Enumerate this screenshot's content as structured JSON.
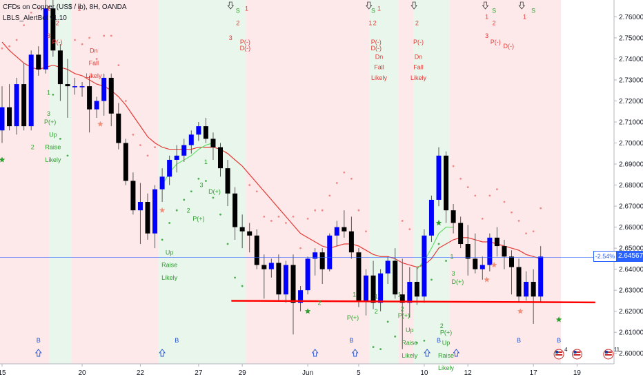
{
  "header": {
    "symbol_line": "CFDs on Copper (US$ / lb), 8H, OANDA",
    "indicator_line": "LBLS_AlertBot v1.10"
  },
  "price_tag": {
    "pct": "-2.54%",
    "value": "2.64567"
  },
  "colors": {
    "background": "#ffffff",
    "bull_candle": "#0000ff",
    "bear_candle": "#000000",
    "wick": "#555555",
    "uptrend_zone": "#e9f6ec",
    "downtrend_zone": "#fde9e9",
    "red_ma": "#e53935",
    "green_ma": "#66dd66",
    "support_line": "#ff0000",
    "current_price_line": "#2962ff",
    "sell_label": "#e53935",
    "buy_label": "#2e9e2e",
    "arrow_label": "#1e4fd6"
  },
  "chart_data": {
    "type": "candlestick",
    "title": "CFDs on Copper (US$ / lb), 8H, OANDA",
    "y_range": [
      2.595,
      2.768
    ],
    "y_ticks": [
      "2.76000",
      "2.75000",
      "2.74000",
      "2.73000",
      "2.72000",
      "2.71000",
      "2.70000",
      "2.69000",
      "2.68000",
      "2.67000",
      "2.66000",
      "2.65000",
      "2.64000",
      "2.63000",
      "2.62000",
      "2.61000",
      "2.60000"
    ],
    "x_ticks": [
      {
        "label": "15",
        "i": 0
      },
      {
        "label": "20",
        "i": 11
      },
      {
        "label": "22",
        "i": 19
      },
      {
        "label": "27",
        "i": 27
      },
      {
        "label": "29",
        "i": 33
      },
      {
        "label": "Jun",
        "i": 42
      },
      {
        "label": "5",
        "i": 49
      },
      {
        "label": "10",
        "i": 58
      },
      {
        "label": "12",
        "i": 64
      },
      {
        "label": "17",
        "i": 73
      },
      {
        "label": "19",
        "i": 79
      }
    ],
    "candles": [
      {
        "o": 2.706,
        "h": 2.727,
        "l": 2.7,
        "c": 2.717
      },
      {
        "o": 2.717,
        "h": 2.728,
        "l": 2.706,
        "c": 2.708
      },
      {
        "o": 2.708,
        "h": 2.731,
        "l": 2.704,
        "c": 2.728
      },
      {
        "o": 2.728,
        "h": 2.738,
        "l": 2.706,
        "c": 2.708
      },
      {
        "o": 2.708,
        "h": 2.744,
        "l": 2.706,
        "c": 2.742
      },
      {
        "o": 2.742,
        "h": 2.746,
        "l": 2.732,
        "c": 2.735
      },
      {
        "o": 2.735,
        "h": 2.772,
        "l": 2.733,
        "c": 2.764
      },
      {
        "o": 2.764,
        "h": 2.768,
        "l": 2.741,
        "c": 2.744
      },
      {
        "o": 2.744,
        "h": 2.747,
        "l": 2.72,
        "c": 2.728
      },
      {
        "o": 2.728,
        "h": 2.74,
        "l": 2.712,
        "c": 2.727
      },
      {
        "o": 2.727,
        "h": 2.731,
        "l": 2.723,
        "c": 2.727
      },
      {
        "o": 2.727,
        "h": 2.729,
        "l": 2.722,
        "c": 2.727
      },
      {
        "o": 2.727,
        "h": 2.732,
        "l": 2.705,
        "c": 2.716
      },
      {
        "o": 2.716,
        "h": 2.722,
        "l": 2.712,
        "c": 2.72
      },
      {
        "o": 2.72,
        "h": 2.733,
        "l": 2.713,
        "c": 2.731
      },
      {
        "o": 2.731,
        "h": 2.733,
        "l": 2.708,
        "c": 2.714
      },
      {
        "o": 2.714,
        "h": 2.719,
        "l": 2.697,
        "c": 2.7
      },
      {
        "o": 2.7,
        "h": 2.702,
        "l": 2.68,
        "c": 2.682
      },
      {
        "o": 2.682,
        "h": 2.686,
        "l": 2.666,
        "c": 2.668
      },
      {
        "o": 2.668,
        "h": 2.681,
        "l": 2.652,
        "c": 2.672
      },
      {
        "o": 2.672,
        "h": 2.676,
        "l": 2.654,
        "c": 2.657
      },
      {
        "o": 2.657,
        "h": 2.68,
        "l": 2.65,
        "c": 2.678
      },
      {
        "o": 2.678,
        "h": 2.688,
        "l": 2.672,
        "c": 2.684
      },
      {
        "o": 2.684,
        "h": 2.694,
        "l": 2.68,
        "c": 2.692
      },
      {
        "o": 2.692,
        "h": 2.699,
        "l": 2.686,
        "c": 2.694
      },
      {
        "o": 2.694,
        "h": 2.702,
        "l": 2.691,
        "c": 2.699
      },
      {
        "o": 2.699,
        "h": 2.706,
        "l": 2.695,
        "c": 2.704
      },
      {
        "o": 2.704,
        "h": 2.71,
        "l": 2.701,
        "c": 2.708
      },
      {
        "o": 2.708,
        "h": 2.712,
        "l": 2.7,
        "c": 2.702
      },
      {
        "o": 2.702,
        "h": 2.705,
        "l": 2.692,
        "c": 2.698
      },
      {
        "o": 2.698,
        "h": 2.7,
        "l": 2.684,
        "c": 2.688
      },
      {
        "o": 2.688,
        "h": 2.692,
        "l": 2.67,
        "c": 2.676
      },
      {
        "o": 2.676,
        "h": 2.679,
        "l": 2.654,
        "c": 2.66
      },
      {
        "o": 2.66,
        "h": 2.666,
        "l": 2.65,
        "c": 2.658
      },
      {
        "o": 2.658,
        "h": 2.662,
        "l": 2.648,
        "c": 2.656
      },
      {
        "o": 2.656,
        "h": 2.659,
        "l": 2.64,
        "c": 2.642
      },
      {
        "o": 2.642,
        "h": 2.647,
        "l": 2.626,
        "c": 2.64
      },
      {
        "o": 2.64,
        "h": 2.645,
        "l": 2.636,
        "c": 2.643
      },
      {
        "o": 2.643,
        "h": 2.647,
        "l": 2.625,
        "c": 2.628
      },
      {
        "o": 2.628,
        "h": 2.644,
        "l": 2.624,
        "c": 2.642
      },
      {
        "o": 2.642,
        "h": 2.647,
        "l": 2.609,
        "c": 2.624
      },
      {
        "o": 2.624,
        "h": 2.632,
        "l": 2.62,
        "c": 2.63
      },
      {
        "o": 2.63,
        "h": 2.646,
        "l": 2.628,
        "c": 2.645
      },
      {
        "o": 2.645,
        "h": 2.65,
        "l": 2.637,
        "c": 2.648
      },
      {
        "o": 2.648,
        "h": 2.65,
        "l": 2.633,
        "c": 2.64
      },
      {
        "o": 2.64,
        "h": 2.657,
        "l": 2.639,
        "c": 2.656
      },
      {
        "o": 2.656,
        "h": 2.663,
        "l": 2.651,
        "c": 2.66
      },
      {
        "o": 2.66,
        "h": 2.668,
        "l": 2.655,
        "c": 2.658
      },
      {
        "o": 2.658,
        "h": 2.665,
        "l": 2.645,
        "c": 2.648
      },
      {
        "o": 2.648,
        "h": 2.65,
        "l": 2.622,
        "c": 2.625
      },
      {
        "o": 2.625,
        "h": 2.64,
        "l": 2.618,
        "c": 2.637
      },
      {
        "o": 2.637,
        "h": 2.644,
        "l": 2.621,
        "c": 2.624
      },
      {
        "o": 2.624,
        "h": 2.64,
        "l": 2.62,
        "c": 2.638
      },
      {
        "o": 2.638,
        "h": 2.646,
        "l": 2.633,
        "c": 2.644
      },
      {
        "o": 2.644,
        "h": 2.65,
        "l": 2.626,
        "c": 2.628
      },
      {
        "o": 2.628,
        "h": 2.645,
        "l": 2.602,
        "c": 2.624
      },
      {
        "o": 2.624,
        "h": 2.641,
        "l": 2.617,
        "c": 2.634
      },
      {
        "o": 2.634,
        "h": 2.641,
        "l": 2.623,
        "c": 2.627
      },
      {
        "o": 2.627,
        "h": 2.659,
        "l": 2.624,
        "c": 2.656
      },
      {
        "o": 2.656,
        "h": 2.675,
        "l": 2.653,
        "c": 2.673
      },
      {
        "o": 2.673,
        "h": 2.698,
        "l": 2.67,
        "c": 2.694
      },
      {
        "o": 2.694,
        "h": 2.696,
        "l": 2.662,
        "c": 2.668
      },
      {
        "o": 2.668,
        "h": 2.671,
        "l": 2.657,
        "c": 2.662
      },
      {
        "o": 2.662,
        "h": 2.665,
        "l": 2.65,
        "c": 2.652
      },
      {
        "o": 2.652,
        "h": 2.661,
        "l": 2.637,
        "c": 2.645
      },
      {
        "o": 2.645,
        "h": 2.657,
        "l": 2.638,
        "c": 2.64
      },
      {
        "o": 2.64,
        "h": 2.646,
        "l": 2.635,
        "c": 2.642
      },
      {
        "o": 2.642,
        "h": 2.657,
        "l": 2.639,
        "c": 2.655
      },
      {
        "o": 2.655,
        "h": 2.66,
        "l": 2.646,
        "c": 2.651
      },
      {
        "o": 2.651,
        "h": 2.654,
        "l": 2.64,
        "c": 2.646
      },
      {
        "o": 2.646,
        "h": 2.649,
        "l": 2.628,
        "c": 2.641
      },
      {
        "o": 2.641,
        "h": 2.645,
        "l": 2.624,
        "c": 2.627
      },
      {
        "o": 2.627,
        "h": 2.639,
        "l": 2.625,
        "c": 2.634
      },
      {
        "o": 2.634,
        "h": 2.64,
        "l": 2.614,
        "c": 2.627
      },
      {
        "o": 2.627,
        "h": 2.651,
        "l": 2.624,
        "c": 2.646
      }
    ],
    "red_ma": [
      2.748,
      2.744,
      2.741,
      2.738,
      2.736,
      2.735,
      2.736,
      2.737,
      2.736,
      2.735,
      2.733,
      2.732,
      2.73,
      2.728,
      2.727,
      2.725,
      2.722,
      2.718,
      2.713,
      2.708,
      2.703,
      2.7,
      2.698,
      2.697,
      2.697,
      2.697,
      2.697,
      2.698,
      2.698,
      2.698,
      2.697,
      2.695,
      2.692,
      2.689,
      2.685,
      2.681,
      2.677,
      2.673,
      2.669,
      2.665,
      2.661,
      2.657,
      2.655,
      2.653,
      2.651,
      2.65,
      2.651,
      2.652,
      2.652,
      2.651,
      2.649,
      2.647,
      2.646,
      2.646,
      2.645,
      2.643,
      2.642,
      2.641,
      2.642,
      2.645,
      2.65,
      2.652,
      2.654,
      2.655,
      2.655,
      2.654,
      2.653,
      2.653,
      2.652,
      2.651,
      2.65,
      2.649,
      2.647,
      2.646,
      2.645
    ],
    "green_ma": [
      {
        "i": 22,
        "v": 2.68
      },
      {
        "i": 23,
        "v": 2.686
      },
      {
        "i": 24,
        "v": 2.69
      },
      {
        "i": 25,
        "v": 2.692
      },
      {
        "i": 26,
        "v": 2.694
      },
      {
        "i": 27,
        "v": 2.697
      },
      {
        "i": 28,
        "v": 2.699
      },
      {
        "i": 29,
        "v": 2.7
      },
      {
        "i": 57,
        "v": 2.64
      },
      {
        "i": 58,
        "v": 2.644
      },
      {
        "i": 59,
        "v": 2.65
      },
      {
        "i": 60,
        "v": 2.657
      },
      {
        "i": 61,
        "v": 2.66
      },
      {
        "i": 62,
        "v": 2.66
      }
    ],
    "support_level": 2.625,
    "current_price": 2.64567,
    "zones": [
      {
        "from": -0.5,
        "to": 6.5,
        "trend": "down"
      },
      {
        "from": 6.5,
        "to": 9.5,
        "trend": "up"
      },
      {
        "from": 9.5,
        "to": 21.5,
        "trend": "down"
      },
      {
        "from": 21.5,
        "to": 33.5,
        "trend": "up"
      },
      {
        "from": 33.5,
        "to": 50.5,
        "trend": "down"
      },
      {
        "from": 50.5,
        "to": 54.5,
        "trend": "up"
      },
      {
        "from": 54.5,
        "to": 56.5,
        "trend": "down"
      },
      {
        "from": 56.5,
        "to": 61.5,
        "trend": "up"
      },
      {
        "from": 61.5,
        "to": 79.5,
        "trend": "down"
      }
    ],
    "annotations": [
      {
        "i": 6.4,
        "v": 2.763,
        "text": "1",
        "color": "sell"
      },
      {
        "i": 7.6,
        "v": 2.756,
        "text": "2",
        "color": "sell"
      },
      {
        "i": 6.4,
        "v": 2.75,
        "text": "3",
        "color": "sell"
      },
      {
        "i": 7.6,
        "v": 2.747,
        "text": "P(-)",
        "color": "sell"
      },
      {
        "i": 10.6,
        "v": 2.763,
        "text": "1",
        "color": "sell"
      },
      {
        "i": 12.6,
        "v": 2.743,
        "text": "Dn",
        "color": "sell"
      },
      {
        "i": 12.6,
        "v": 2.737,
        "text": "Fall",
        "color": "sell"
      },
      {
        "i": 12.6,
        "v": 2.731,
        "text": "Likely",
        "color": "sell"
      },
      {
        "i": 6.4,
        "v": 2.723,
        "text": "1",
        "color": "buy"
      },
      {
        "i": 6.4,
        "v": 2.713,
        "text": "3",
        "color": "buy"
      },
      {
        "i": 6.6,
        "v": 2.709,
        "text": "P(+)",
        "color": "buy"
      },
      {
        "i": 4.2,
        "v": 2.697,
        "text": "2",
        "color": "buy"
      },
      {
        "i": 7.0,
        "v": 2.703,
        "text": "Up",
        "color": "buy"
      },
      {
        "i": 7.0,
        "v": 2.697,
        "text": "Raise",
        "color": "buy"
      },
      {
        "i": 7.0,
        "v": 2.691,
        "text": "Likely",
        "color": "buy"
      },
      {
        "i": 23.0,
        "v": 2.647,
        "text": "Up",
        "color": "buy"
      },
      {
        "i": 23.0,
        "v": 2.641,
        "text": "Raise",
        "color": "buy"
      },
      {
        "i": 23.0,
        "v": 2.635,
        "text": "Likely",
        "color": "buy"
      },
      {
        "i": 25.6,
        "v": 2.667,
        "text": "2",
        "color": "buy"
      },
      {
        "i": 27.0,
        "v": 2.663,
        "text": "P(+)",
        "color": "buy"
      },
      {
        "i": 28.0,
        "v": 2.69,
        "text": "1",
        "color": "buy"
      },
      {
        "i": 27.4,
        "v": 2.679,
        "text": "3",
        "color": "buy"
      },
      {
        "i": 29.2,
        "v": 2.676,
        "text": "D(+)",
        "color": "buy"
      },
      {
        "i": 32.4,
        "v": 2.762,
        "text": "S",
        "color": "buy"
      },
      {
        "i": 32.4,
        "v": 2.756,
        "text": "2",
        "color": "sell"
      },
      {
        "i": 33.6,
        "v": 2.763,
        "text": "1",
        "color": "sell"
      },
      {
        "i": 31.4,
        "v": 2.749,
        "text": "3",
        "color": "sell"
      },
      {
        "i": 33.4,
        "v": 2.747,
        "text": "P(-)",
        "color": "sell"
      },
      {
        "i": 33.4,
        "v": 2.744,
        "text": "D(-)",
        "color": "sell"
      },
      {
        "i": 51.0,
        "v": 2.762,
        "text": "S",
        "color": "buy"
      },
      {
        "i": 50.6,
        "v": 2.756,
        "text": "1",
        "color": "sell"
      },
      {
        "i": 51.8,
        "v": 2.763,
        "text": "1",
        "color": "sell"
      },
      {
        "i": 51.2,
        "v": 2.756,
        "text": "2",
        "color": "sell"
      },
      {
        "i": 51.4,
        "v": 2.747,
        "text": "P(-)",
        "color": "sell"
      },
      {
        "i": 51.4,
        "v": 2.744,
        "text": "D(-)",
        "color": "sell"
      },
      {
        "i": 51.8,
        "v": 2.74,
        "text": "Dn",
        "color": "sell"
      },
      {
        "i": 51.8,
        "v": 2.735,
        "text": "Fall",
        "color": "sell"
      },
      {
        "i": 51.8,
        "v": 2.73,
        "text": "Likely",
        "color": "sell"
      },
      {
        "i": 57.0,
        "v": 2.756,
        "text": "2",
        "color": "sell"
      },
      {
        "i": 57.2,
        "v": 2.747,
        "text": "P(-)",
        "color": "sell"
      },
      {
        "i": 57.2,
        "v": 2.74,
        "text": "Dn",
        "color": "sell"
      },
      {
        "i": 57.2,
        "v": 2.735,
        "text": "Fall",
        "color": "sell"
      },
      {
        "i": 57.2,
        "v": 2.73,
        "text": "Likely",
        "color": "sell"
      },
      {
        "i": 67.6,
        "v": 2.762,
        "text": "S",
        "color": "buy"
      },
      {
        "i": 67.6,
        "v": 2.756,
        "text": "2",
        "color": "sell"
      },
      {
        "i": 66.6,
        "v": 2.759,
        "text": "1",
        "color": "sell"
      },
      {
        "i": 66.6,
        "v": 2.75,
        "text": "3",
        "color": "sell"
      },
      {
        "i": 67.8,
        "v": 2.747,
        "text": "P(-)",
        "color": "sell"
      },
      {
        "i": 69.6,
        "v": 2.745,
        "text": "D(-)",
        "color": "sell"
      },
      {
        "i": 71.8,
        "v": 2.759,
        "text": "1",
        "color": "sell"
      },
      {
        "i": 73.0,
        "v": 2.762,
        "text": "S",
        "color": "buy"
      },
      {
        "i": 61.8,
        "v": 2.645,
        "text": "1",
        "color": "buy"
      },
      {
        "i": 62.0,
        "v": 2.637,
        "text": "3",
        "color": "buy"
      },
      {
        "i": 62.6,
        "v": 2.633,
        "text": "D(+)",
        "color": "buy"
      },
      {
        "i": 48.4,
        "v": 2.627,
        "text": "1",
        "color": "buy"
      },
      {
        "i": 51.4,
        "v": 2.626,
        "text": "1",
        "color": "buy"
      },
      {
        "i": 43.6,
        "v": 2.623,
        "text": "2",
        "color": "buy"
      },
      {
        "i": 51.4,
        "v": 2.619,
        "text": "2",
        "color": "buy"
      },
      {
        "i": 55.0,
        "v": 2.62,
        "text": "2",
        "color": "buy"
      },
      {
        "i": 54.6,
        "v": 2.627,
        "text": "1",
        "color": "buy"
      },
      {
        "i": 48.2,
        "v": 2.616,
        "text": "P(+)",
        "color": "buy"
      },
      {
        "i": 55.2,
        "v": 2.617,
        "text": "P(+)",
        "color": "buy"
      },
      {
        "i": 60.4,
        "v": 2.612,
        "text": "2",
        "color": "buy"
      },
      {
        "i": 61.0,
        "v": 2.609,
        "text": "P(+)",
        "color": "buy"
      },
      {
        "i": 56.0,
        "v": 2.61,
        "text": "Up",
        "color": "buy"
      },
      {
        "i": 56.0,
        "v": 2.604,
        "text": "Raise",
        "color": "buy"
      },
      {
        "i": 56.0,
        "v": 2.598,
        "text": "Likely",
        "color": "buy"
      },
      {
        "i": 61.0,
        "v": 2.604,
        "text": "Up",
        "color": "buy"
      },
      {
        "i": 61.0,
        "v": 2.598,
        "text": "Raise",
        "color": "buy"
      },
      {
        "i": 61.0,
        "v": 2.592,
        "text": "Likely",
        "color": "buy"
      }
    ],
    "b_markers": [
      5,
      24,
      48,
      60,
      71,
      76.5
    ],
    "b_label": "B",
    "sell_arrows": [
      31.4,
      50.4,
      56.6,
      66.4,
      71.4
    ],
    "buy_arrows": [
      5,
      22,
      43,
      48.5,
      58.4,
      62.4
    ],
    "red_stars": [
      13.5,
      22.0,
      66.6,
      67.6,
      71.2
    ],
    "green_stars": [
      0,
      42.0,
      60.0,
      76.5
    ],
    "flag_label_1": "4",
    "flag_label_2": "11"
  }
}
